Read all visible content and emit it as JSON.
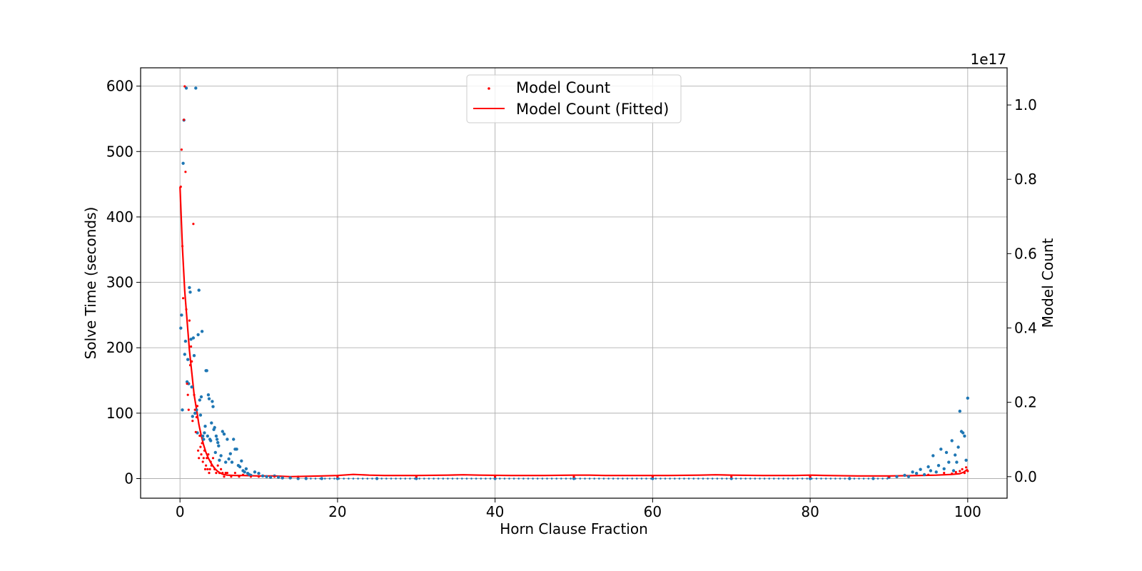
{
  "chart_data": {
    "type": "scatter",
    "xlabel": "Horn Clause Fraction",
    "ylabel": "Solve Time (seconds)",
    "ylabel_right": "Model Count",
    "right_axis_offset_label": "1e17",
    "xlim": [
      -5,
      105
    ],
    "ylim_left": [
      -30,
      628
    ],
    "ylim_right": [
      -0.058,
      1.1
    ],
    "x_ticks": [
      "0",
      "20",
      "40",
      "60",
      "80",
      "100"
    ],
    "y_ticks_left": [
      "0",
      "100",
      "200",
      "300",
      "400",
      "500",
      "600"
    ],
    "y_ticks_right": [
      "0.0",
      "0.2",
      "0.4",
      "0.6",
      "0.8",
      "1.0"
    ],
    "grid": true,
    "legend_position": "top-center",
    "colors": {
      "solve_time": "#1f77b4",
      "model_count": "#ff0000"
    },
    "legend": [
      "Model Count",
      "Model Count (Fitted)"
    ],
    "series": [
      {
        "role": "solve_time",
        "axis": "left",
        "style": "scatter",
        "x": [
          0.1,
          0.2,
          0.3,
          0.4,
          0.5,
          0.6,
          0.7,
          0.8,
          0.9,
          1.0,
          1.1,
          1.2,
          1.3,
          1.4,
          1.5,
          1.6,
          1.7,
          1.8,
          1.9,
          2.0,
          2.1,
          2.2,
          2.3,
          2.4,
          2.5,
          2.6,
          2.7,
          2.8,
          2.9,
          3.0,
          3.1,
          3.2,
          3.3,
          3.4,
          3.5,
          3.6,
          3.7,
          3.8,
          3.9,
          4.0,
          4.1,
          4.2,
          4.3,
          4.4,
          4.5,
          4.6,
          4.7,
          4.8,
          4.9,
          5.0,
          5.2,
          5.4,
          5.6,
          5.8,
          6.0,
          6.2,
          6.4,
          6.6,
          6.8,
          7.0,
          7.2,
          7.4,
          7.6,
          7.8,
          8.0,
          8.2,
          8.4,
          8.6,
          8.8,
          9.0,
          9.5,
          10.0,
          10.5,
          11.0,
          11.5,
          12.0,
          12.5,
          13.0,
          14.0,
          15.0,
          16.0,
          18.0,
          20.0,
          25.0,
          30.0,
          40.0,
          50.0,
          60.0,
          70.0,
          80.0,
          85.0,
          88.0,
          90.0,
          91.0,
          92.0,
          92.5,
          93.0,
          93.5,
          94.0,
          94.5,
          95.0,
          95.3,
          95.6,
          96.0,
          96.3,
          96.6,
          97.0,
          97.3,
          97.6,
          98.0,
          98.2,
          98.4,
          98.6,
          98.8,
          99.0,
          99.2,
          99.4,
          99.6,
          99.8,
          100.0
        ],
        "y": [
          230,
          250,
          105,
          482,
          548,
          190,
          210,
          597,
          148,
          182,
          145,
          292,
          285,
          213,
          140,
          95,
          215,
          188,
          100,
          597,
          105,
          70,
          220,
          288,
          120,
          97,
          125,
          225,
          65,
          60,
          70,
          80,
          165,
          165,
          65,
          128,
          122,
          60,
          58,
          85,
          118,
          110,
          75,
          78,
          40,
          65,
          60,
          55,
          50,
          28,
          35,
          72,
          68,
          25,
          60,
          30,
          38,
          25,
          60,
          45,
          45,
          20,
          18,
          27,
          12,
          10,
          15,
          8,
          6,
          5,
          10,
          8,
          4,
          3,
          2,
          4,
          2,
          1,
          1,
          0,
          0,
          0,
          0,
          0,
          0,
          0,
          0,
          0,
          0,
          0,
          0,
          0,
          2,
          3,
          5,
          3,
          10,
          8,
          14,
          6,
          18,
          12,
          35,
          10,
          20,
          45,
          15,
          40,
          25,
          58,
          12,
          36,
          25,
          48,
          103,
          72,
          70,
          65,
          28,
          123
        ],
        "marker_size": 2.2
      },
      {
        "role": "model_count",
        "name": "Model Count",
        "axis": "right",
        "style": "scatter",
        "x": [
          0.1,
          0.2,
          0.3,
          0.4,
          0.5,
          0.6,
          0.7,
          0.8,
          0.9,
          1.0,
          1.1,
          1.2,
          1.3,
          1.4,
          1.5,
          1.6,
          1.7,
          1.8,
          1.9,
          2.0,
          2.1,
          2.2,
          2.3,
          2.4,
          2.5,
          2.6,
          2.7,
          2.8,
          2.9,
          3.0,
          3.1,
          3.2,
          3.3,
          3.4,
          3.5,
          3.6,
          3.7,
          3.8,
          3.9,
          4.0,
          4.2,
          4.4,
          4.6,
          4.8,
          5.0,
          5.2,
          5.4,
          5.6,
          5.8,
          6.0,
          6.5,
          7.0,
          7.5,
          8.0,
          9.0,
          10.0,
          12.0,
          15.0,
          20.0,
          30.0,
          40.0,
          50.0,
          60.0,
          70.0,
          80.0,
          90.0,
          95.0,
          97.0,
          98.0,
          98.5,
          99.0,
          99.3,
          99.6,
          99.8,
          100.0
        ],
        "y": [
          0.78,
          0.88,
          0.62,
          0.48,
          0.96,
          1.05,
          0.82,
          0.45,
          0.25,
          0.22,
          0.18,
          0.42,
          0.3,
          0.35,
          0.31,
          0.15,
          0.68,
          0.22,
          0.18,
          0.12,
          0.16,
          0.19,
          0.07,
          0.05,
          0.11,
          0.08,
          0.06,
          0.09,
          0.04,
          0.05,
          0.07,
          0.02,
          0.03,
          0.05,
          0.02,
          0.06,
          0.01,
          0.02,
          0.04,
          0.03,
          0.05,
          0.02,
          0.01,
          0.03,
          0.01,
          0.02,
          0.01,
          0.0,
          0.01,
          0.01,
          0.0,
          0.01,
          0.0,
          0.005,
          0.0,
          0.0,
          0.0,
          0.0,
          0.0,
          0.0,
          0.0,
          0.0,
          0.0,
          0.0,
          0.0,
          0.0,
          0.005,
          0.01,
          0.008,
          0.012,
          0.015,
          0.02,
          0.01,
          0.025,
          0.015
        ],
        "marker_size": 1.6
      },
      {
        "role": "model_count_fitted",
        "name": "Model Count (Fitted)",
        "axis": "right",
        "style": "line",
        "x": [
          0.0,
          0.3,
          0.6,
          0.9,
          1.2,
          1.5,
          1.8,
          2.1,
          2.4,
          2.7,
          3.0,
          3.3,
          3.6,
          3.9,
          4.2,
          4.5,
          4.8,
          5.1,
          5.5,
          6.0,
          7.0,
          8.0,
          10.0,
          12.0,
          14.0,
          16.0,
          18.0,
          20.0,
          22.0,
          24.0,
          26.0,
          30.0,
          34.0,
          36.0,
          38.0,
          42.0,
          46.0,
          50.0,
          52.0,
          54.0,
          58.0,
          62.0,
          66.0,
          68.0,
          70.0,
          74.0,
          78.0,
          80.0,
          82.0,
          86.0,
          90.0,
          94.0,
          96.0,
          98.0,
          99.0,
          99.5,
          100.0
        ],
        "y": [
          0.78,
          0.62,
          0.5,
          0.42,
          0.34,
          0.28,
          0.22,
          0.18,
          0.14,
          0.11,
          0.085,
          0.065,
          0.05,
          0.038,
          0.028,
          0.02,
          0.014,
          0.01,
          0.006,
          0.004,
          0.003,
          0.003,
          0.002,
          0.002,
          0.0,
          0.001,
          0.002,
          0.003,
          0.006,
          0.004,
          0.003,
          0.003,
          0.004,
          0.005,
          0.004,
          0.003,
          0.003,
          0.004,
          0.004,
          0.003,
          0.003,
          0.003,
          0.004,
          0.005,
          0.004,
          0.003,
          0.003,
          0.004,
          0.003,
          0.002,
          0.002,
          0.003,
          0.004,
          0.006,
          0.008,
          0.012,
          0.02
        ]
      }
    ]
  }
}
